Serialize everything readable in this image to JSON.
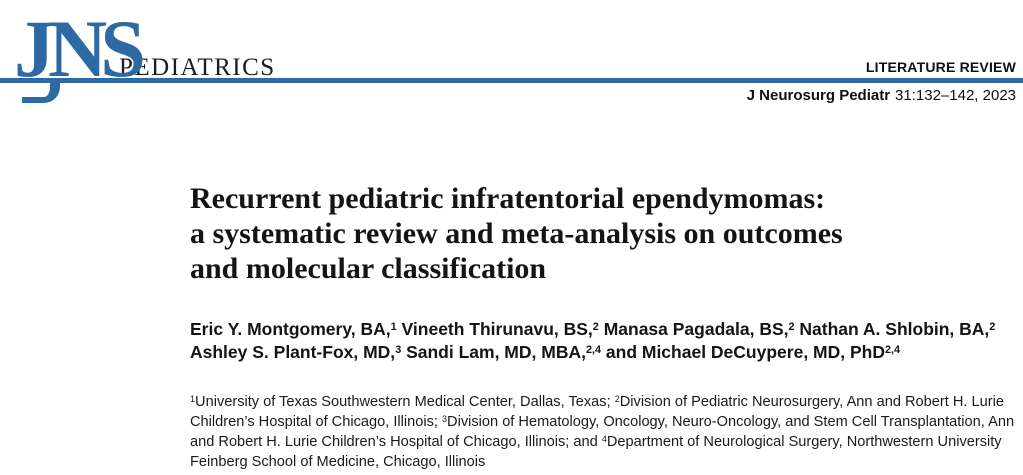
{
  "brand": {
    "logo": "JNS",
    "wordmark": "PEDIATRICS",
    "accent_color": "#2d6aa3"
  },
  "header": {
    "article_type": "LITERATURE REVIEW",
    "citation_journal": "J Neurosurg Pediatr",
    "citation_detail": "31:132–142, 2023"
  },
  "article": {
    "title_lines": [
      "Recurrent pediatric infratentorial ependymomas:",
      "a systematic review and meta-analysis on outcomes",
      "and molecular classification"
    ],
    "author_lines": [
      [
        {
          "t": "Eric Y. Montgomery, BA,"
        },
        {
          "sup": "1"
        },
        {
          "t": " Vineeth Thirunavu, BS,"
        },
        {
          "sup": "2"
        },
        {
          "t": " Manasa Pagadala, BS,"
        },
        {
          "sup": "2"
        },
        {
          "t": " Nathan A. Shlobin, BA,"
        },
        {
          "sup": "2"
        }
      ],
      [
        {
          "t": "Ashley S. Plant-Fox, MD,"
        },
        {
          "sup": "3"
        },
        {
          "t": " Sandi Lam, MD, MBA,"
        },
        {
          "sup": "2,4"
        },
        {
          "t": " and Michael DeCuypere, MD, PhD"
        },
        {
          "sup": "2,4"
        }
      ]
    ],
    "affiliation_lines": [
      [
        {
          "sup": "1"
        },
        {
          "t": "University of Texas Southwestern Medical Center, Dallas, Texas; "
        },
        {
          "sup": "2"
        },
        {
          "t": "Division of Pediatric Neurosurgery, Ann and Robert H. Lurie"
        }
      ],
      [
        {
          "t": "Children’s Hospital of Chicago, Illinois; "
        },
        {
          "sup": "3"
        },
        {
          "t": "Division of Hematology, Oncology, Neuro-Oncology, and Stem Cell Transplantation, Ann"
        }
      ],
      [
        {
          "t": "and Robert H. Lurie Children’s Hospital of Chicago, Illinois; and "
        },
        {
          "sup": "4"
        },
        {
          "t": "Department of Neurological Surgery, Northwestern University"
        }
      ],
      [
        {
          "t": "Feinberg School of Medicine, Chicago, Illinois"
        }
      ]
    ]
  }
}
